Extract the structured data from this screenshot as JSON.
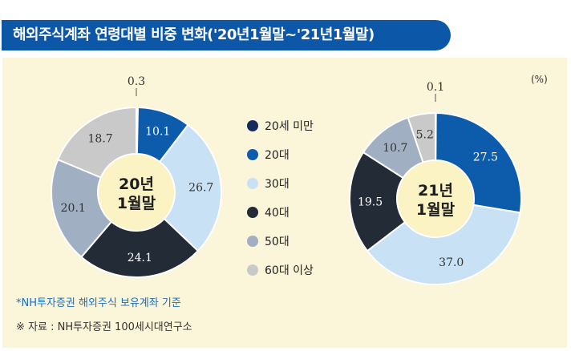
{
  "title": "해외주식계좌 연령대별 비중 변화('20년1월말~'21년1월말)",
  "unit": "(%)",
  "note": "*NH투자증권 해외주식 보유계좌 기준",
  "source": "※ 자료 : NH투자증권 100세시대연구소",
  "colors": {
    "title_bg": "#0d57a8",
    "panel_bg": "#fbf5d9",
    "center_bg": "#fbf3c4",
    "segments": [
      "#132a5e",
      "#0d5cac",
      "#c9e1f5",
      "#232b36",
      "#a1afc3",
      "#c9c9c9"
    ]
  },
  "legend": [
    "20세 미만",
    "20대",
    "30대",
    "40대",
    "50대",
    "60대 이상"
  ],
  "chart_data": [
    {
      "type": "pie",
      "variant": "donut",
      "center_label": [
        "20년",
        "1월말"
      ],
      "categories": [
        "20세 미만",
        "20대",
        "30대",
        "40대",
        "50대",
        "60대 이상"
      ],
      "values": [
        0.3,
        10.1,
        26.7,
        24.1,
        20.1,
        18.7
      ],
      "labels": [
        "0.3",
        "10.1",
        "26.7",
        "24.1",
        "20.1",
        "18.7"
      ]
    },
    {
      "type": "pie",
      "variant": "donut",
      "center_label": [
        "21년",
        "1월말"
      ],
      "categories": [
        "20세 미만",
        "20대",
        "30대",
        "40대",
        "50대",
        "60대 이상"
      ],
      "values": [
        0.1,
        27.5,
        37.0,
        19.5,
        10.7,
        5.2
      ],
      "labels": [
        "0.1",
        "27.5",
        "37.0",
        "19.5",
        "10.7",
        "5.2"
      ]
    }
  ]
}
